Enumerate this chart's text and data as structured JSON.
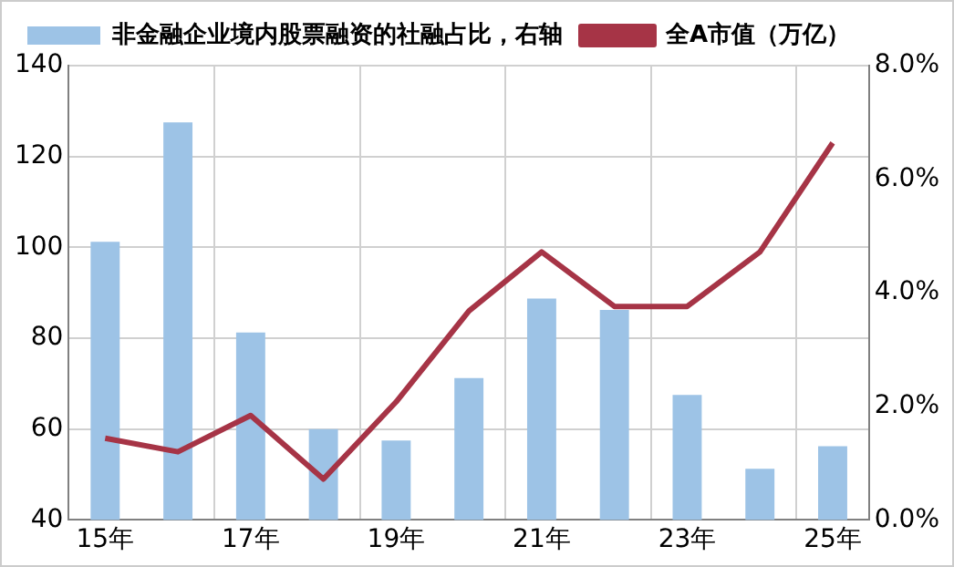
{
  "chart_data": {
    "type": "bar",
    "categories": [
      "15年",
      null,
      "17年",
      null,
      "19年",
      null,
      "21年",
      null,
      "23年",
      null,
      "25年"
    ],
    "series": [
      {
        "name": "非金融企业境内股票融资的社融占比，右轴",
        "axis": "y2",
        "color": "#9dc3e6",
        "values": [
          4.9,
          7.0,
          3.3,
          1.6,
          1.4,
          2.5,
          3.9,
          3.7,
          2.2,
          0.9,
          1.3
        ]
      },
      {
        "name": "全A市值（万亿）",
        "type": "line",
        "color": "#a63446",
        "values": [
          58,
          55,
          63,
          49,
          66,
          86,
          99,
          87,
          87,
          99,
          123
        ]
      }
    ],
    "ylim": [
      40,
      140
    ],
    "yticks": [
      40,
      60,
      80,
      100,
      120,
      140
    ],
    "y2lim": [
      0,
      8
    ],
    "y2ticks": [
      {
        "value": 0,
        "label": "0.0%"
      },
      {
        "value": 2,
        "label": "2.0%"
      },
      {
        "value": 4,
        "label": "4.0%"
      },
      {
        "value": 6,
        "label": "6.0%"
      },
      {
        "value": 8,
        "label": "8.0%"
      }
    ],
    "grid": true,
    "legend": "top",
    "marker": "none",
    "line_style": "solid"
  }
}
